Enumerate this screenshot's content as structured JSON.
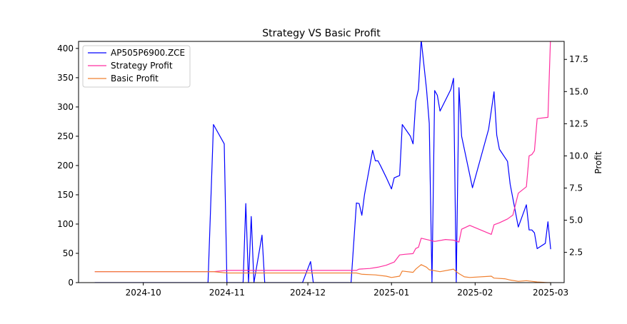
{
  "chart_data": {
    "type": "line",
    "title": "Strategy VS Basic Profit",
    "xlabel": "",
    "ylabel_left": "",
    "ylabel_right": "Profit",
    "x_ticks": [
      "2024-10",
      "2024-11",
      "2024-12",
      "2025-01",
      "2025-02",
      "2025-03"
    ],
    "y_left_ticks": [
      "0",
      "50",
      "100",
      "150",
      "200",
      "250",
      "300",
      "350",
      "400"
    ],
    "y_right_ticks": [
      "2.5",
      "5.0",
      "7.5",
      "10.0",
      "12.5",
      "15.0",
      "17.5"
    ],
    "y_left_lim": [
      0,
      412
    ],
    "y_right_lim": [
      0.15,
      18.9
    ],
    "x_lim": [
      "2024-09-07",
      "2025-03-06"
    ],
    "legend_position": "top-left",
    "colors": {
      "left_series": "#0000ff",
      "strategy": "#ff2fa0",
      "basic": "#f08030"
    },
    "series": [
      {
        "name": "AP505P6900.ZCE",
        "axis": "left",
        "color": "#0000ff",
        "points": [
          [
            "2024-09-13",
            0
          ],
          [
            "2024-10-25",
            0
          ],
          [
            "2024-10-27",
            270
          ],
          [
            "2024-10-31",
            237
          ],
          [
            "2024-11-01",
            0
          ],
          [
            "2024-11-07",
            0
          ],
          [
            "2024-11-08",
            135
          ],
          [
            "2024-11-09",
            0
          ],
          [
            "2024-11-10",
            113
          ],
          [
            "2024-11-11",
            0
          ],
          [
            "2024-11-14",
            81
          ],
          [
            "2024-11-15",
            0
          ],
          [
            "2024-11-29",
            0
          ],
          [
            "2024-12-02",
            36
          ],
          [
            "2024-12-03",
            0
          ],
          [
            "2024-12-17",
            0
          ],
          [
            "2024-12-19",
            136
          ],
          [
            "2024-12-20",
            135
          ],
          [
            "2024-12-21",
            115
          ],
          [
            "2024-12-22",
            150
          ],
          [
            "2024-12-25",
            226
          ],
          [
            "2024-12-26",
            208
          ],
          [
            "2024-12-27",
            208
          ],
          [
            "2024-12-28",
            199
          ],
          [
            "2024-12-30",
            180
          ],
          [
            "2025-01-01",
            160
          ],
          [
            "2025-01-02",
            179
          ],
          [
            "2025-01-04",
            183
          ],
          [
            "2025-01-05",
            270
          ],
          [
            "2025-01-08",
            250
          ],
          [
            "2025-01-09",
            237
          ],
          [
            "2025-01-10",
            310
          ],
          [
            "2025-01-11",
            330
          ],
          [
            "2025-01-12",
            415
          ],
          [
            "2025-01-14",
            330
          ],
          [
            "2025-01-15",
            272
          ],
          [
            "2025-01-16",
            0
          ],
          [
            "2025-01-17",
            328
          ],
          [
            "2025-01-18",
            320
          ],
          [
            "2025-01-19",
            293
          ],
          [
            "2025-01-23",
            330
          ],
          [
            "2025-01-24",
            349
          ],
          [
            "2025-01-25",
            0
          ],
          [
            "2025-01-26",
            333
          ],
          [
            "2025-01-27",
            250
          ],
          [
            "2025-01-31",
            162
          ],
          [
            "2025-02-06",
            262
          ],
          [
            "2025-02-08",
            326
          ],
          [
            "2025-02-09",
            252
          ],
          [
            "2025-02-10",
            228
          ],
          [
            "2025-02-13",
            207
          ],
          [
            "2025-02-14",
            168
          ],
          [
            "2025-02-17",
            95
          ],
          [
            "2025-02-20",
            133
          ],
          [
            "2025-02-21",
            90
          ],
          [
            "2025-02-22",
            90
          ],
          [
            "2025-02-23",
            85
          ],
          [
            "2025-02-24",
            58
          ],
          [
            "2025-02-27",
            67
          ],
          [
            "2025-02-28",
            104
          ],
          [
            "2025-03-01",
            57
          ]
        ]
      },
      {
        "name": "Strategy Profit",
        "axis": "right",
        "color": "#ff2fa0",
        "points": [
          [
            "2024-09-13",
            1.0
          ],
          [
            "2024-10-27",
            1.0
          ],
          [
            "2024-11-01",
            1.1
          ],
          [
            "2024-12-19",
            1.1
          ],
          [
            "2024-12-20",
            1.2
          ],
          [
            "2024-12-24",
            1.25
          ],
          [
            "2024-12-27",
            1.35
          ],
          [
            "2024-12-30",
            1.5
          ],
          [
            "2025-01-02",
            1.75
          ],
          [
            "2025-01-04",
            2.3
          ],
          [
            "2025-01-06",
            2.35
          ],
          [
            "2025-01-09",
            2.4
          ],
          [
            "2025-01-10",
            2.8
          ],
          [
            "2025-01-11",
            2.9
          ],
          [
            "2025-01-12",
            3.6
          ],
          [
            "2025-01-14",
            3.5
          ],
          [
            "2025-01-17",
            3.35
          ],
          [
            "2025-01-21",
            3.5
          ],
          [
            "2025-01-24",
            3.45
          ],
          [
            "2025-01-26",
            3.3
          ],
          [
            "2025-01-27",
            4.3
          ],
          [
            "2025-01-30",
            4.6
          ],
          [
            "2025-02-07",
            3.9
          ],
          [
            "2025-02-08",
            4.65
          ],
          [
            "2025-02-10",
            4.8
          ],
          [
            "2025-02-13",
            5.1
          ],
          [
            "2025-02-15",
            5.4
          ],
          [
            "2025-02-17",
            7.1
          ],
          [
            "2025-02-20",
            7.6
          ],
          [
            "2025-02-21",
            10.0
          ],
          [
            "2025-02-22",
            10.1
          ],
          [
            "2025-02-23",
            10.4
          ],
          [
            "2025-02-24",
            12.9
          ],
          [
            "2025-02-28",
            13.0
          ],
          [
            "2025-03-01",
            19.5
          ]
        ]
      },
      {
        "name": "Basic Profit",
        "axis": "right",
        "color": "#f08030",
        "points": [
          [
            "2024-09-13",
            1.0
          ],
          [
            "2024-10-27",
            1.0
          ],
          [
            "2024-11-01",
            0.9
          ],
          [
            "2024-12-19",
            0.9
          ],
          [
            "2024-12-21",
            0.8
          ],
          [
            "2024-12-26",
            0.75
          ],
          [
            "2024-12-30",
            0.65
          ],
          [
            "2025-01-01",
            0.55
          ],
          [
            "2025-01-04",
            0.65
          ],
          [
            "2025-01-05",
            1.05
          ],
          [
            "2025-01-09",
            0.95
          ],
          [
            "2025-01-10",
            1.2
          ],
          [
            "2025-01-12",
            1.55
          ],
          [
            "2025-01-14",
            1.35
          ],
          [
            "2025-01-15",
            1.15
          ],
          [
            "2025-01-19",
            1.0
          ],
          [
            "2025-01-24",
            1.2
          ],
          [
            "2025-01-25",
            1.0
          ],
          [
            "2025-01-26",
            0.85
          ],
          [
            "2025-01-28",
            0.6
          ],
          [
            "2025-01-30",
            0.55
          ],
          [
            "2025-02-07",
            0.65
          ],
          [
            "2025-02-08",
            0.5
          ],
          [
            "2025-02-12",
            0.45
          ],
          [
            "2025-02-14",
            0.35
          ],
          [
            "2025-02-17",
            0.25
          ],
          [
            "2025-02-20",
            0.3
          ],
          [
            "2025-02-22",
            0.25
          ],
          [
            "2025-02-24",
            0.2
          ],
          [
            "2025-02-28",
            0.15
          ],
          [
            "2025-03-01",
            0.15
          ]
        ]
      }
    ]
  }
}
